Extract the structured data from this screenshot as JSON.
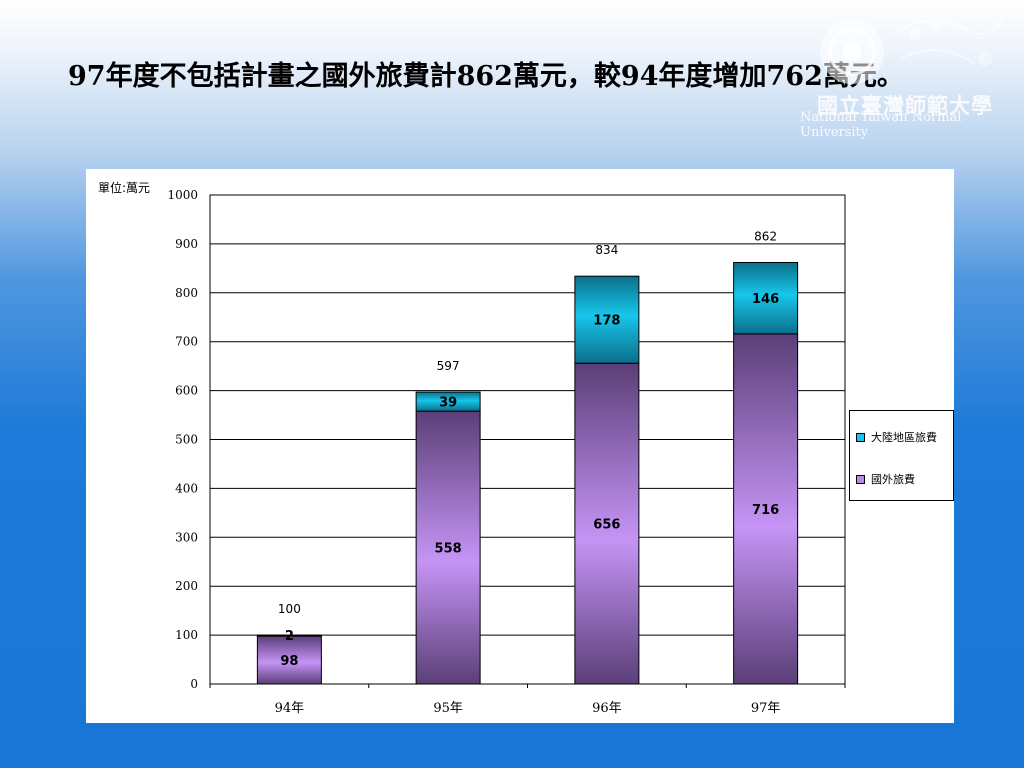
{
  "slide": {
    "title": "97年度不包括計畫之國外旅費計862萬元，較94年度增加762萬元。"
  },
  "logo": {
    "name": "國立臺灣師範大學",
    "english": "National Taiwan Normal University"
  },
  "colors": {
    "overseas": "#b48be6",
    "mainland": "#11b8d8",
    "accent_blue": "#1a76d4"
  },
  "chart_data": {
    "type": "bar",
    "stacked": true,
    "unit_label": "單位:萬元",
    "categories": [
      "94年",
      "95年",
      "96年",
      "97年"
    ],
    "series": [
      {
        "name": "國外旅費",
        "values": [
          98,
          558,
          656,
          716
        ]
      },
      {
        "name": "大陸地區旅費",
        "values": [
          2,
          39,
          178,
          146
        ]
      }
    ],
    "totals": [
      100,
      597,
      834,
      862
    ],
    "ylim": [
      0,
      1000
    ],
    "yticks": [
      0,
      100,
      200,
      300,
      400,
      500,
      600,
      700,
      800,
      900,
      1000
    ],
    "grid": true,
    "legend_position": "right",
    "legend_order": [
      "大陸地區旅費",
      "國外旅費"
    ]
  }
}
